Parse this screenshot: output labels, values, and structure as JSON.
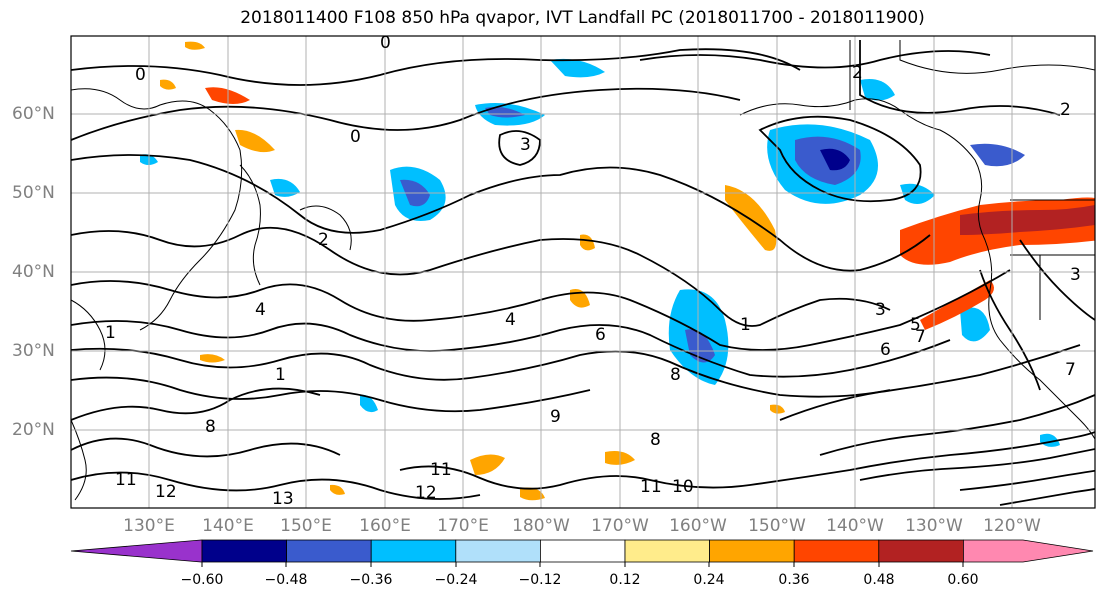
{
  "title": "2018011400 F108 850 hPa qvapor, IVT Landfall PC (2018011700 - 2018011900)",
  "map": {
    "latitude_labels": [
      "60°N",
      "50°N",
      "40°N",
      "30°N",
      "20°N"
    ],
    "longitude_labels": [
      "130°E",
      "140°E",
      "150°E",
      "160°E",
      "170°E",
      "180°W",
      "170°W",
      "160°W",
      "150°W",
      "140°W",
      "130°W",
      "120°W"
    ],
    "contour_labels": [
      "0",
      "0",
      "0",
      "2",
      "2",
      "2",
      "3",
      "3",
      "3",
      "4",
      "4",
      "1",
      "1",
      "1",
      "5",
      "6",
      "6",
      "7",
      "7",
      "8",
      "8",
      "8",
      "9",
      "10",
      "11",
      "11",
      "11",
      "12",
      "12",
      "13"
    ],
    "land_color": "#ffffff",
    "ocean_color": "#ffffff",
    "grid_color": "#b0b0b0"
  },
  "colorbar": {
    "colors": [
      "#9932cc",
      "#00008b",
      "#3a5bcd",
      "#00bfff",
      "#b0e0fa",
      "#ffffff",
      "#ffec8b",
      "#ffa500",
      "#ff4500",
      "#b22222",
      "#ff88b0"
    ],
    "tick_labels": [
      "−0.60",
      "−0.48",
      "−0.36",
      "−0.24",
      "−0.12",
      "0.12",
      "0.24",
      "0.36",
      "0.48",
      "0.60"
    ]
  }
}
